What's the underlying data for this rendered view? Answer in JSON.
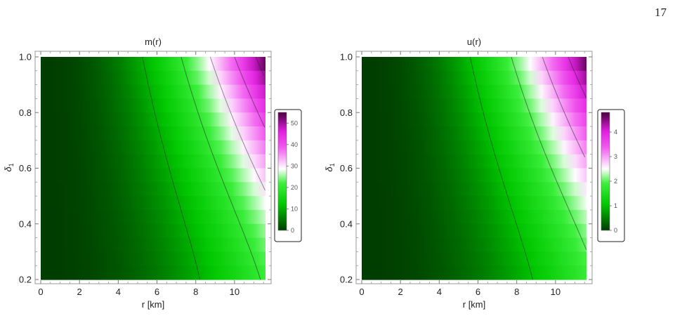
{
  "page": {
    "number": "17"
  },
  "chart_data": [
    {
      "type": "heatmap",
      "title": "m(r)",
      "xlabel": "r [km]",
      "ylabel": "δ1",
      "ylabel_main": "δ",
      "ylabel_sub": "1",
      "xlim": [
        0,
        11.6
      ],
      "ylim": [
        0.2,
        1.0
      ],
      "xticks": [
        "0",
        "2",
        "4",
        "6",
        "8",
        "10"
      ],
      "yticks": [
        "0.2",
        "0.4",
        "0.6",
        "0.8",
        "1.0"
      ],
      "colorbar": {
        "min": 0,
        "max": 55,
        "ticks": [
          "0",
          "10",
          "20",
          "30",
          "40",
          "50"
        ]
      },
      "contours": [
        10,
        20,
        30,
        40,
        50
      ],
      "value_at_corners": {
        "r0_any": 0,
        "rmax_d1": 55,
        "rmax_d0.2": 21
      },
      "colors": [
        "#003d00",
        "#00c800",
        "#3cf03c",
        "#ffffff",
        "#f25cf0",
        "#e21ee0",
        "#4a003f"
      ]
    },
    {
      "type": "heatmap",
      "title": "u(r)",
      "xlabel": "r [km]",
      "ylabel": "δ1",
      "ylabel_main": "δ",
      "ylabel_sub": "1",
      "xlim": [
        0,
        11.6
      ],
      "ylim": [
        0.2,
        1.0
      ],
      "xticks": [
        "0",
        "2",
        "4",
        "6",
        "8",
        "10"
      ],
      "yticks": [
        "0.2",
        "0.4",
        "0.6",
        "0.8",
        "1.0"
      ],
      "colorbar": {
        "min": 0,
        "max": 4.8,
        "ticks": [
          "0",
          "1",
          "2",
          "3",
          "4"
        ]
      },
      "contours": [
        1,
        2,
        3,
        4
      ],
      "value_at_corners": {
        "r0_any": 0,
        "rmax_d1": 4.8,
        "rmax_d0.2": 1.8
      },
      "colors": [
        "#003d00",
        "#00c800",
        "#3cf03c",
        "#ffffff",
        "#f25cf0",
        "#e21ee0",
        "#4a003f"
      ]
    }
  ]
}
